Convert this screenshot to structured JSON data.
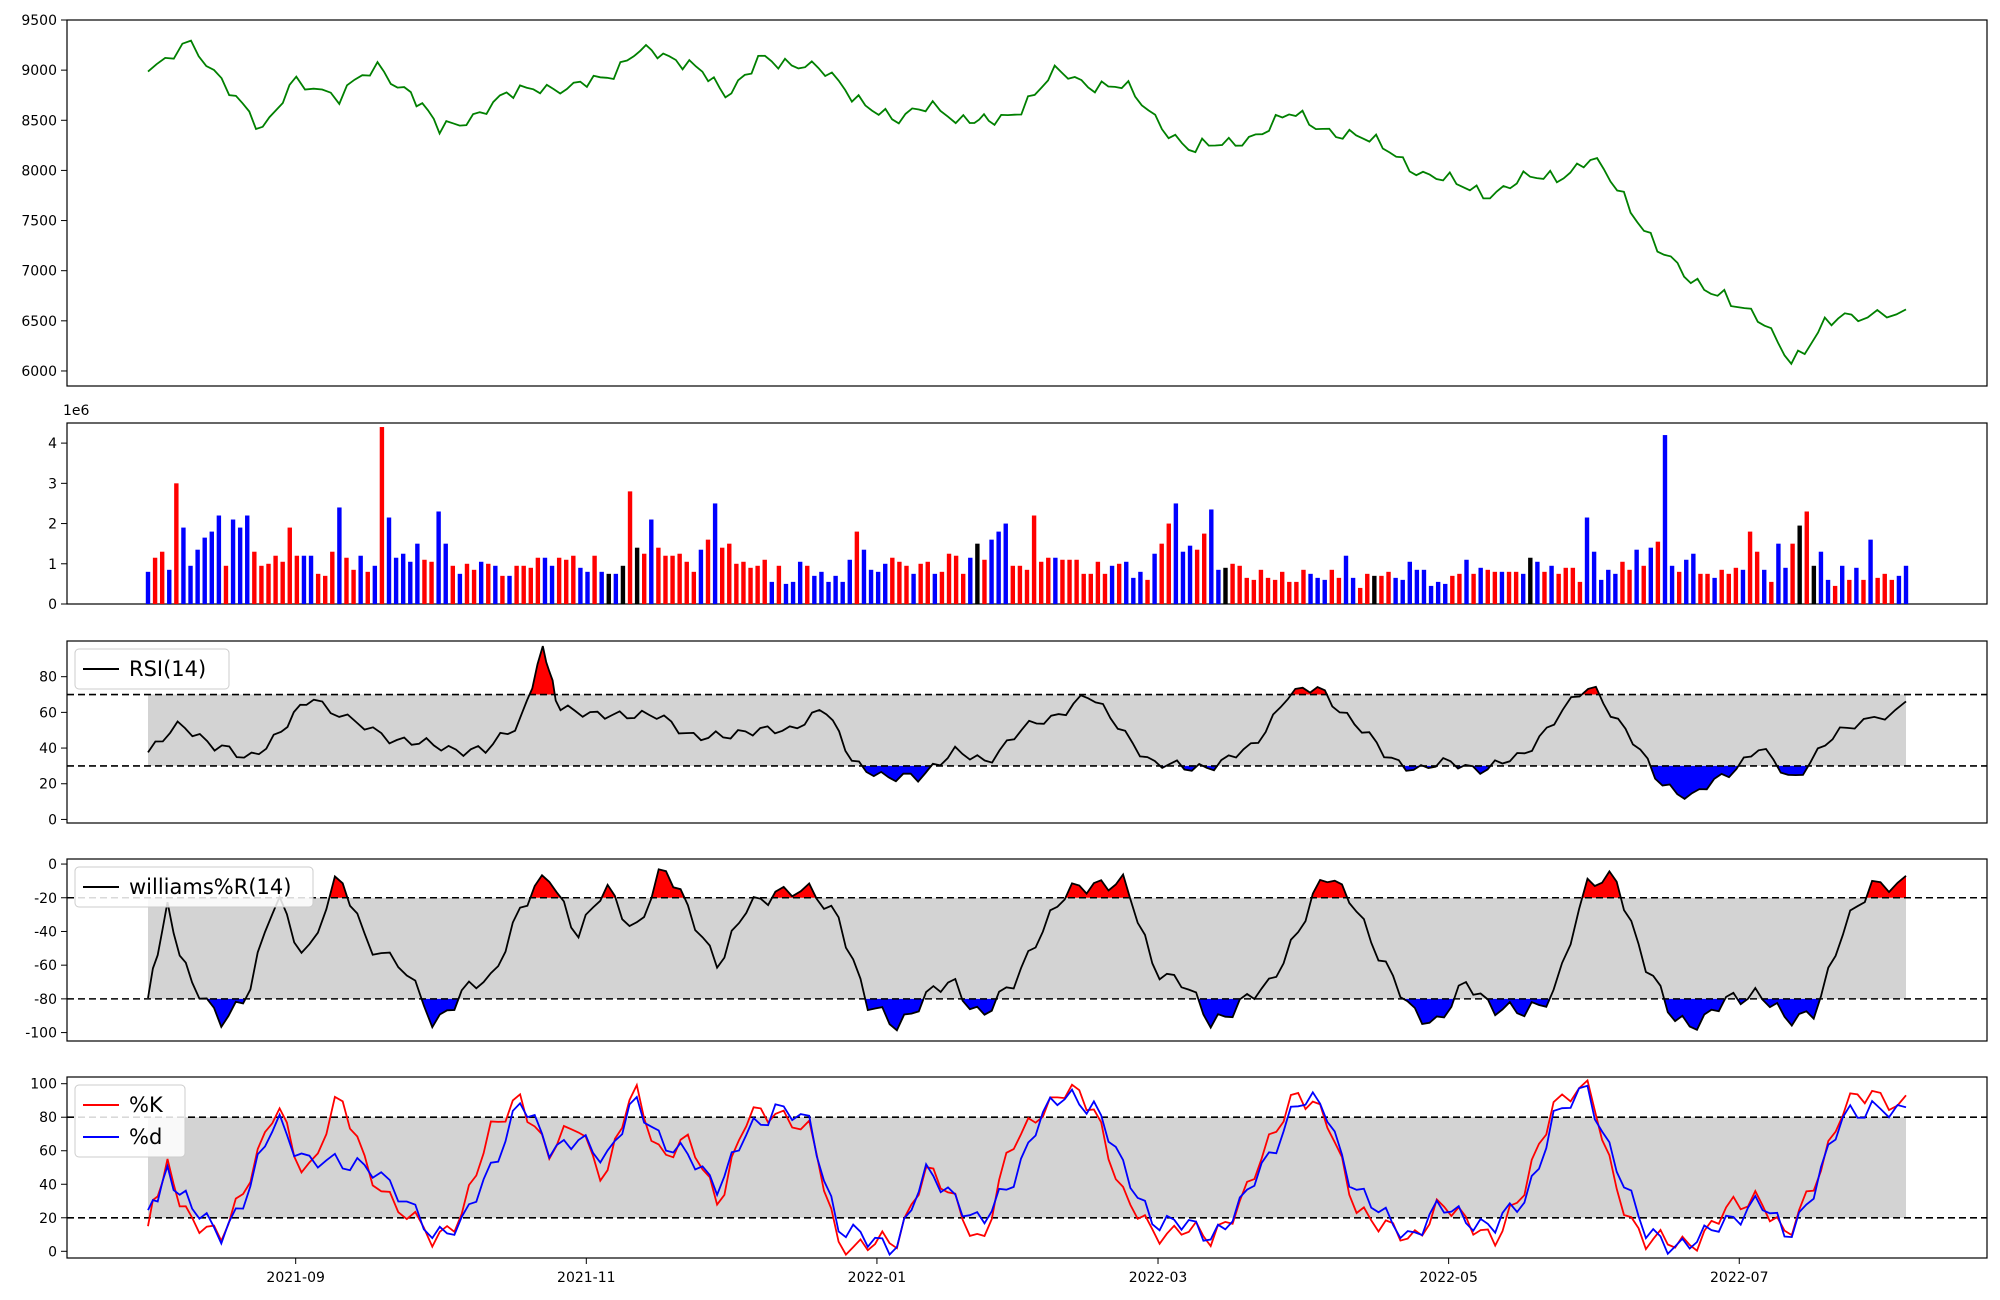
{
  "chart_data": [
    {
      "type": "line",
      "name": "price",
      "ylim": [
        5850,
        9500
      ],
      "yticks": [
        6000,
        6500,
        7000,
        7500,
        8000,
        8500,
        9000,
        9500
      ],
      "line_color": "#008000",
      "x": [
        "2021-08-01",
        "2021-08-10",
        "2021-08-18",
        "2021-08-25",
        "2021-09-01",
        "2021-09-10",
        "2021-09-18",
        "2021-09-25",
        "2021-10-01",
        "2021-10-08",
        "2021-10-15",
        "2021-10-22",
        "2021-10-29",
        "2021-11-05",
        "2021-11-12",
        "2021-11-18",
        "2021-11-25",
        "2021-12-01",
        "2021-12-08",
        "2021-12-15",
        "2021-12-22",
        "2021-12-29",
        "2022-01-05",
        "2022-01-12",
        "2022-01-20",
        "2022-01-25",
        "2022-02-01",
        "2022-02-08",
        "2022-02-15",
        "2022-02-22",
        "2022-03-01",
        "2022-03-08",
        "2022-03-15",
        "2022-03-22",
        "2022-03-29",
        "2022-04-05",
        "2022-04-12",
        "2022-04-19",
        "2022-04-26",
        "2022-05-03",
        "2022-05-10",
        "2022-05-17",
        "2022-05-24",
        "2022-05-31",
        "2022-06-07",
        "2022-06-14",
        "2022-06-21",
        "2022-06-28",
        "2022-07-05",
        "2022-07-12",
        "2022-07-19",
        "2022-07-26",
        "2022-08-05"
      ],
      "values": [
        8960,
        9250,
        8850,
        8350,
        8950,
        8700,
        9050,
        8780,
        8400,
        8550,
        8720,
        8850,
        8820,
        8900,
        9250,
        9080,
        9060,
        8700,
        9160,
        9050,
        8950,
        8700,
        8450,
        8700,
        8450,
        8500,
        8650,
        8980,
        8870,
        8820,
        8500,
        8200,
        8250,
        8380,
        8550,
        8430,
        8320,
        8200,
        7950,
        7850,
        7780,
        7900,
        7950,
        8120,
        7700,
        7250,
        6850,
        6780,
        6500,
        6100,
        6480,
        6520,
        6650
      ]
    },
    {
      "type": "bar",
      "name": "volume",
      "axis_multiplier": "1e6",
      "ylim": [
        0,
        4.5
      ],
      "yticks": [
        0,
        1,
        2,
        3,
        4
      ],
      "colors": {
        "up": "#ff0000",
        "down": "#0000ff",
        "flat": "#000000"
      },
      "values": [
        0.8,
        1.15,
        1.3,
        0.85,
        3.0,
        1.9,
        0.95,
        1.35,
        1.65,
        1.8,
        2.2,
        0.95,
        2.1,
        1.9,
        2.2,
        1.3,
        0.95,
        1.0,
        1.2,
        1.05,
        1.9,
        1.2,
        1.2,
        1.2,
        0.75,
        0.7,
        1.3,
        2.4,
        1.15,
        0.85,
        1.2,
        0.8,
        0.95,
        4.4,
        2.15,
        1.15,
        1.25,
        1.05,
        1.5,
        1.1,
        1.05,
        2.3,
        1.5,
        0.95,
        0.75,
        1.0,
        0.85,
        1.05,
        1.0,
        0.95,
        0.7,
        0.7,
        0.95,
        0.95,
        0.9,
        1.15,
        1.15,
        0.95,
        1.15,
        1.1,
        1.2,
        0.9,
        0.8,
        1.2,
        0.8,
        0.75,
        0.75,
        0.95,
        2.8,
        1.4,
        1.25,
        2.1,
        1.4,
        1.2,
        1.2,
        1.25,
        1.05,
        0.8,
        1.35,
        1.6,
        2.5,
        1.4,
        1.5,
        1.0,
        1.05,
        0.9,
        0.95,
        1.1,
        0.55,
        0.95,
        0.5,
        0.55,
        1.05,
        0.95,
        0.7,
        0.8,
        0.55,
        0.7,
        0.55,
        1.1,
        1.8,
        1.35,
        0.85,
        0.8,
        1.0,
        1.15,
        1.05,
        0.95,
        0.75,
        1.0,
        1.05,
        0.75,
        0.8,
        1.25,
        1.2,
        0.75,
        1.15,
        1.5,
        1.1,
        1.6,
        1.8,
        2.0,
        0.95,
        0.95,
        0.85,
        2.2,
        1.05,
        1.15,
        1.15,
        1.1,
        1.1,
        1.1,
        0.75,
        0.75,
        1.05,
        0.75,
        0.95,
        1.0,
        1.05,
        0.65,
        0.8,
        0.6,
        1.25,
        1.5,
        2.0,
        2.5,
        1.3,
        1.45,
        1.35,
        1.75,
        2.35,
        0.85,
        0.9,
        1.0,
        0.95,
        0.65,
        0.6,
        0.85,
        0.65,
        0.6,
        0.8,
        0.55,
        0.55,
        0.85,
        0.75,
        0.65,
        0.6,
        0.85,
        0.65,
        1.2,
        0.65,
        0.4,
        0.75,
        0.7,
        0.7,
        0.8,
        0.65,
        0.6,
        1.05,
        0.85,
        0.85,
        0.45,
        0.55,
        0.5,
        0.7,
        0.75,
        1.1,
        0.75,
        0.9,
        0.85,
        0.8,
        0.8,
        0.8,
        0.8,
        0.75,
        1.15,
        1.05,
        0.8,
        0.95,
        0.75,
        0.9,
        0.9,
        0.55,
        2.15,
        1.3,
        0.6,
        0.85,
        0.75,
        1.05,
        0.85,
        1.35,
        0.95,
        1.4,
        1.55,
        4.2,
        0.95,
        0.8,
        1.1,
        1.25,
        0.75,
        0.75,
        0.65,
        0.85,
        0.75,
        0.9,
        0.85,
        1.8,
        1.3,
        0.85,
        0.55,
        1.5,
        0.9,
        1.5,
        1.95,
        2.3,
        0.95,
        1.3,
        0.6,
        0.45,
        0.95,
        0.6,
        0.9,
        0.6,
        1.6,
        0.65,
        0.75,
        0.6,
        0.7,
        0.95
      ],
      "bar_colors": [
        "down",
        "up",
        "up",
        "down",
        "up",
        "down",
        "down",
        "down",
        "down",
        "down",
        "down",
        "up",
        "down",
        "down",
        "down",
        "up",
        "up",
        "up",
        "up",
        "up",
        "up",
        "up",
        "down",
        "down",
        "up",
        "up",
        "up",
        "down",
        "up",
        "up",
        "down",
        "up",
        "down",
        "up",
        "down",
        "down",
        "down",
        "down",
        "down",
        "up",
        "up",
        "down",
        "down",
        "up",
        "down",
        "up",
        "up",
        "down",
        "up",
        "down",
        "up",
        "down",
        "up",
        "up",
        "up",
        "up",
        "down",
        "down",
        "up",
        "up",
        "up",
        "down",
        "down",
        "up",
        "down",
        "flat",
        "down",
        "flat",
        "up",
        "flat",
        "up",
        "down",
        "up",
        "up",
        "up",
        "up",
        "up",
        "up",
        "down",
        "up",
        "down",
        "up",
        "up",
        "up",
        "up",
        "up",
        "up",
        "up",
        "down",
        "up",
        "down",
        "down",
        "down",
        "up",
        "down",
        "down",
        "down",
        "down",
        "down",
        "down",
        "up",
        "down",
        "down",
        "down",
        "down",
        "up",
        "up",
        "up",
        "down",
        "up",
        "up",
        "down",
        "up",
        "up",
        "up",
        "up",
        "down",
        "flat",
        "up",
        "down",
        "down",
        "down",
        "up",
        "up",
        "up",
        "up",
        "up",
        "up",
        "down",
        "up",
        "up",
        "up",
        "up",
        "up",
        "up",
        "up",
        "down",
        "up",
        "down",
        "down",
        "down",
        "up",
        "down",
        "up",
        "up",
        "down",
        "down",
        "down",
        "up",
        "up",
        "down",
        "down",
        "flat",
        "up",
        "up",
        "up",
        "up",
        "up",
        "up",
        "up",
        "up",
        "up",
        "up",
        "up",
        "down",
        "down",
        "down",
        "up",
        "up",
        "down",
        "down",
        "up",
        "up",
        "flat",
        "up",
        "up",
        "down",
        "down",
        "down",
        "down",
        "down",
        "down",
        "down",
        "down",
        "up",
        "up",
        "down",
        "up",
        "down",
        "up",
        "up",
        "down",
        "up",
        "up",
        "down",
        "flat",
        "down",
        "up",
        "down",
        "up",
        "up",
        "up",
        "up",
        "down",
        "down",
        "down",
        "down",
        "down",
        "up",
        "up",
        "down",
        "up",
        "down",
        "up",
        "down",
        "down",
        "up",
        "down",
        "down",
        "up",
        "up",
        "down",
        "up",
        "up",
        "up",
        "down",
        "up",
        "up",
        "down",
        "up",
        "down",
        "down",
        "up",
        "flat",
        "up",
        "flat",
        "down",
        "down",
        "up",
        "down",
        "up",
        "down",
        "up",
        "down",
        "up",
        "up",
        "up"
      ]
    },
    {
      "type": "line",
      "name": "rsi",
      "legend": "RSI(14)",
      "ylim": [
        -2,
        100
      ],
      "yticks": [
        0,
        20,
        40,
        60,
        80
      ],
      "thresholds": [
        30,
        70
      ],
      "band_color": "#d3d3d3",
      "over_color": "#ff0000",
      "under_color": "#0000ff",
      "x": [
        "2021-08-01",
        "2021-08-08",
        "2021-08-15",
        "2021-08-22",
        "2021-08-29",
        "2021-09-04",
        "2021-09-12",
        "2021-09-20",
        "2021-09-27",
        "2021-10-04",
        "2021-10-11",
        "2021-10-18",
        "2021-10-23",
        "2021-10-26",
        "2021-11-02",
        "2021-11-09",
        "2021-11-16",
        "2021-11-23",
        "2021-11-30",
        "2021-12-07",
        "2021-12-14",
        "2021-12-21",
        "2021-12-27",
        "2022-01-03",
        "2022-01-10",
        "2022-01-17",
        "2022-01-24",
        "2022-01-31",
        "2022-02-07",
        "2022-02-14",
        "2022-02-21",
        "2022-02-28",
        "2022-03-07",
        "2022-03-14",
        "2022-03-21",
        "2022-03-28",
        "2022-04-04",
        "2022-04-11",
        "2022-04-18",
        "2022-04-25",
        "2022-05-02",
        "2022-05-09",
        "2022-05-16",
        "2022-05-23",
        "2022-05-31",
        "2022-06-07",
        "2022-06-14",
        "2022-06-21",
        "2022-06-28",
        "2022-07-05",
        "2022-07-12",
        "2022-07-19",
        "2022-07-26",
        "2022-08-05"
      ],
      "values": [
        36,
        55,
        40,
        35,
        48,
        70,
        55,
        47,
        42,
        40,
        38,
        55,
        95,
        65,
        57,
        60,
        57,
        48,
        45,
        52,
        48,
        65,
        30,
        25,
        22,
        40,
        30,
        52,
        55,
        72,
        50,
        32,
        28,
        32,
        40,
        70,
        73,
        55,
        35,
        28,
        32,
        28,
        35,
        55,
        76,
        50,
        22,
        12,
        25,
        40,
        22,
        42,
        55,
        63
      ]
    },
    {
      "type": "line",
      "name": "williams",
      "legend": "williams%R(14)",
      "ylim": [
        -105,
        3
      ],
      "yticks": [
        -100,
        -80,
        -60,
        -40,
        -20,
        0
      ],
      "thresholds": [
        -80,
        -20
      ],
      "band_color": "#d3d3d3",
      "over_color": "#ff0000",
      "under_color": "#0000ff",
      "x": [
        "2021-08-01",
        "2021-08-05",
        "2021-08-10",
        "2021-08-16",
        "2021-08-22",
        "2021-08-28",
        "2021-09-03",
        "2021-09-10",
        "2021-09-16",
        "2021-09-23",
        "2021-09-30",
        "2021-10-06",
        "2021-10-12",
        "2021-10-18",
        "2021-10-24",
        "2021-10-30",
        "2021-11-05",
        "2021-11-11",
        "2021-11-17",
        "2021-11-23",
        "2021-11-29",
        "2021-12-05",
        "2021-12-11",
        "2021-12-18",
        "2021-12-24",
        "2021-12-30",
        "2022-01-05",
        "2022-01-11",
        "2022-01-17",
        "2022-01-23",
        "2022-01-29",
        "2022-02-04",
        "2022-02-10",
        "2022-02-16",
        "2022-02-22",
        "2022-02-28",
        "2022-03-06",
        "2022-03-12",
        "2022-03-18",
        "2022-03-24",
        "2022-03-30",
        "2022-04-05",
        "2022-04-11",
        "2022-04-17",
        "2022-04-23",
        "2022-04-29",
        "2022-05-05",
        "2022-05-11",
        "2022-05-17",
        "2022-05-23",
        "2022-05-30",
        "2022-06-05",
        "2022-06-11",
        "2022-06-17",
        "2022-06-23",
        "2022-06-29",
        "2022-07-05",
        "2022-07-11",
        "2022-07-17",
        "2022-07-23",
        "2022-07-29",
        "2022-08-05"
      ],
      "values": [
        -82,
        -25,
        -70,
        -95,
        -75,
        -20,
        -55,
        -8,
        -45,
        -60,
        -95,
        -75,
        -70,
        -25,
        -8,
        -40,
        -15,
        -40,
        -2,
        -30,
        -60,
        -25,
        -15,
        -18,
        -30,
        -85,
        -95,
        -80,
        -70,
        -90,
        -75,
        -40,
        -18,
        -10,
        -12,
        -60,
        -70,
        -95,
        -82,
        -75,
        -40,
        -8,
        -20,
        -60,
        -85,
        -95,
        -70,
        -85,
        -90,
        -75,
        -15,
        -5,
        -60,
        -90,
        -95,
        -80,
        -75,
        -95,
        -85,
        -40,
        -10,
        -12
      ]
    },
    {
      "type": "line",
      "name": "stochastic",
      "ylim": [
        -4,
        104
      ],
      "yticks": [
        0,
        20,
        40,
        60,
        80,
        100
      ],
      "thresholds": [
        20,
        80
      ],
      "band_color": "#d3d3d3",
      "series": [
        {
          "name": "%K",
          "color": "#ff0000",
          "values": [
            15,
            50,
            20,
            5,
            45,
            85,
            45,
            92,
            50,
            25,
            5,
            25,
            70,
            95,
            55,
            80,
            40,
            100,
            55,
            65,
            30,
            80,
            85,
            70,
            5,
            3,
            5,
            50,
            30,
            5,
            60,
            85,
            95,
            85,
            30,
            10,
            15,
            5,
            30,
            60,
            98,
            80,
            30,
            15,
            5,
            30,
            15,
            10,
            35,
            90,
            100,
            40,
            5,
            5,
            8,
            25,
            35,
            5,
            45,
            85,
            95,
            88
          ]
        },
        {
          "name": "%d",
          "color": "#0000ff",
          "values": [
            18,
            50,
            25,
            10,
            35,
            80,
            55,
            50,
            55,
            30,
            12,
            15,
            50,
            90,
            60,
            70,
            50,
            95,
            60,
            60,
            35,
            75,
            85,
            75,
            15,
            5,
            5,
            45,
            35,
            15,
            40,
            80,
            92,
            88,
            45,
            20,
            15,
            10,
            25,
            55,
            90,
            85,
            40,
            20,
            10,
            25,
            20,
            15,
            30,
            80,
            95,
            55,
            10,
            5,
            6,
            20,
            30,
            8,
            40,
            80,
            88,
            80
          ]
        }
      ],
      "x": [
        "2021-08-01",
        "2021-08-05",
        "2021-08-10",
        "2021-08-16",
        "2021-08-22",
        "2021-08-28",
        "2021-09-03",
        "2021-09-10",
        "2021-09-16",
        "2021-09-23",
        "2021-09-30",
        "2021-10-06",
        "2021-10-12",
        "2021-10-18",
        "2021-10-24",
        "2021-10-30",
        "2021-11-05",
        "2021-11-11",
        "2021-11-17",
        "2021-11-23",
        "2021-11-29",
        "2021-12-05",
        "2021-12-11",
        "2021-12-18",
        "2021-12-24",
        "2021-12-30",
        "2022-01-05",
        "2022-01-11",
        "2022-01-17",
        "2022-01-23",
        "2022-01-29",
        "2022-02-04",
        "2022-02-10",
        "2022-02-16",
        "2022-02-22",
        "2022-02-28",
        "2022-03-06",
        "2022-03-12",
        "2022-03-18",
        "2022-03-24",
        "2022-03-30",
        "2022-04-05",
        "2022-04-11",
        "2022-04-17",
        "2022-04-23",
        "2022-04-29",
        "2022-05-05",
        "2022-05-11",
        "2022-05-17",
        "2022-05-23",
        "2022-05-30",
        "2022-06-05",
        "2022-06-11",
        "2022-06-17",
        "2022-06-23",
        "2022-06-29",
        "2022-07-05",
        "2022-07-11",
        "2022-07-17",
        "2022-07-23",
        "2022-07-29",
        "2022-08-05"
      ]
    }
  ],
  "x_axis": {
    "start": "2021-08-01",
    "end": "2022-08-05",
    "view_start": "2021-07-15",
    "view_end": "2022-08-22",
    "ticks": [
      {
        "date": "2021-09-01",
        "label": "2021-09"
      },
      {
        "date": "2021-11-01",
        "label": "2021-11"
      },
      {
        "date": "2022-01-01",
        "label": "2022-01"
      },
      {
        "date": "2022-03-01",
        "label": "2022-03"
      },
      {
        "date": "2022-05-01",
        "label": "2022-05"
      },
      {
        "date": "2022-07-01",
        "label": "2022-07"
      }
    ]
  }
}
